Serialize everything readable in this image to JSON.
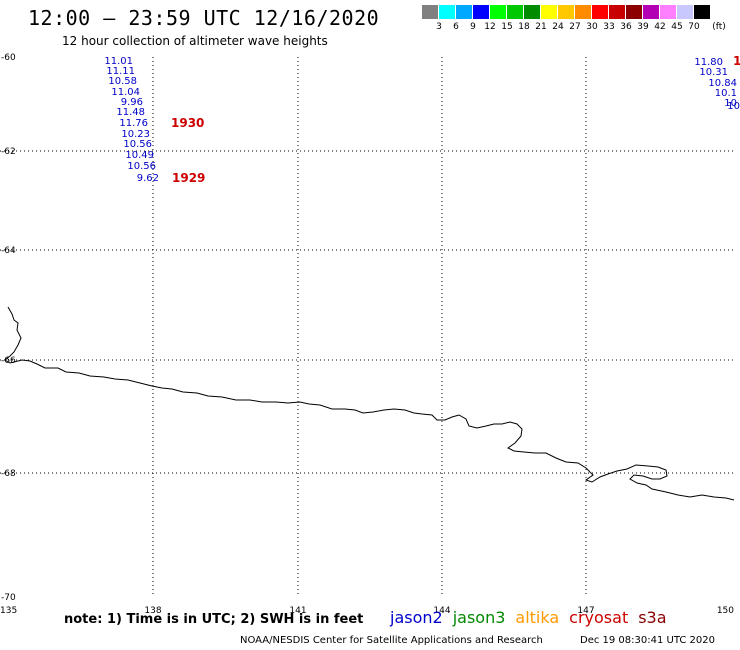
{
  "header": {
    "title": "12:00 – 23:59 UTC 12/16/2020",
    "subtitle": "12 hour collection of altimeter wave heights"
  },
  "legend": {
    "colors": [
      "#808080",
      "#00ffff",
      "#00a8ff",
      "#0000ff",
      "#00ff00",
      "#00c800",
      "#008c00",
      "#ffff00",
      "#ffc800",
      "#ff8c00",
      "#ff0000",
      "#c80000",
      "#8c0000",
      "#b400b4",
      "#ff80ff",
      "#c8c8ff",
      "#000000"
    ],
    "labels": [
      "3",
      "6",
      "9",
      "12",
      "15",
      "18",
      "21",
      "24",
      "27",
      "30",
      "33",
      "36",
      "39",
      "42",
      "45",
      "70"
    ],
    "unit": "(ft)"
  },
  "map": {
    "lat_labels": [
      "-60",
      "-62",
      "-64",
      "-66",
      "-68",
      "-70"
    ],
    "lon_labels": [
      "135",
      "138",
      "141",
      "144",
      "147",
      "150"
    ],
    "left_track": {
      "values": [
        "11.01",
        "11.11",
        "10.58",
        "11.04",
        "9.96",
        "11.48",
        "11.76",
        "10.23",
        "10.56",
        "10.49",
        "10.56",
        "9.62"
      ],
      "color": "#0000c8"
    },
    "right_track": {
      "values": [
        "11.80",
        "10.31",
        "10.84",
        "10.1",
        "10",
        "10"
      ],
      "color": "#0000c8"
    },
    "time_labels": [
      {
        "text": "1930",
        "color": "#cc0000"
      },
      {
        "text": "1929",
        "color": "#cc0000"
      },
      {
        "text": "1",
        "color": "#cc0000"
      }
    ]
  },
  "footer": {
    "note": "note: 1) Time is in UTC; 2) SWH is in feet",
    "satellites": [
      {
        "name": "jason2",
        "color": "#0000cc"
      },
      {
        "name": "jason3",
        "color": "#008800"
      },
      {
        "name": "altika",
        "color": "#ff9900"
      },
      {
        "name": "cryosat",
        "color": "#cc0000"
      },
      {
        "name": "s3a",
        "color": "#880000"
      }
    ],
    "credit": "NOAA/NESDIS Center for Satellite Applications and Research",
    "timestamp": "Dec 19 08:30:41 UTC 2020"
  }
}
